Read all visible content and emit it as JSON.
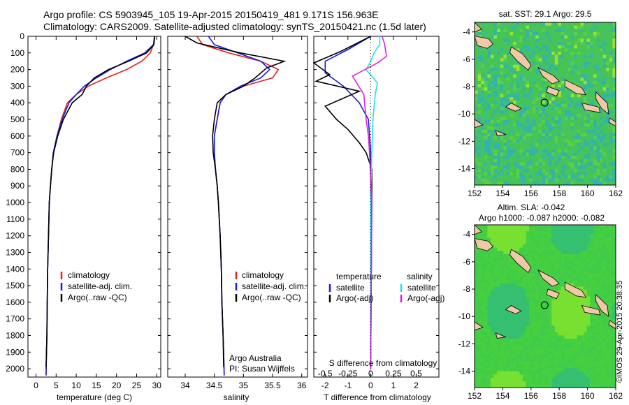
{
  "header": {
    "line1": "Argo profile: CS 5903945_105 19-Apr-2015 20150419_481 9.171S 156.963E",
    "line2": "Climatology: CARS2009. Satellite-adjusted climatology: synTS_20150421.nc (1.5d later)"
  },
  "colors": {
    "climatology": "#e0231c",
    "satellite": "#1a1ae0",
    "argo": "#000000",
    "sat_salinity": "#20e0e8",
    "argo_salinity": "#e020e0",
    "land": "#f0c8a8"
  },
  "chart_data": [
    {
      "type": "line",
      "name": "temperature",
      "xlabel": "temperature (deg C)",
      "ylabel": "",
      "xlim": [
        -2,
        31
      ],
      "ylim": [
        2050,
        0
      ],
      "xticks": [
        0,
        5,
        10,
        15,
        20,
        25,
        30
      ],
      "yticks": [
        0,
        100,
        200,
        300,
        400,
        500,
        600,
        700,
        800,
        900,
        1000,
        1100,
        1200,
        1300,
        1400,
        1500,
        1600,
        1700,
        1800,
        1900,
        2000
      ],
      "legend": [
        "climatology",
        "satellite-adj. clim.",
        "Argo(..raw -QC)"
      ],
      "series": [
        {
          "name": "climatology",
          "color_key": "climatology",
          "x": [
            29.4,
            29.2,
            28.4,
            26.3,
            22.5,
            17.5,
            13.0,
            10.0,
            7.8,
            6.3,
            5.2,
            4.3,
            3.9,
            3.6,
            3.3,
            3.1,
            2.9,
            2.8,
            2.7,
            2.6,
            2.5
          ],
          "y": [
            0,
            50,
            100,
            150,
            200,
            250,
            300,
            350,
            400,
            500,
            600,
            700,
            800,
            900,
            1000,
            1200,
            1400,
            1600,
            1800,
            1900,
            2040
          ]
        },
        {
          "name": "satellite-adj. clim.",
          "color_key": "satellite",
          "x": [
            29.5,
            29.2,
            27.0,
            22.5,
            18.5,
            15.0,
            12.0,
            10.0,
            8.2,
            6.5,
            5.2,
            4.3,
            3.9,
            3.6,
            3.3,
            3.1,
            2.9,
            2.8,
            2.7,
            2.6,
            2.5
          ],
          "y": [
            0,
            50,
            100,
            150,
            200,
            250,
            300,
            350,
            400,
            500,
            600,
            700,
            800,
            900,
            1000,
            1200,
            1400,
            1600,
            1800,
            1900,
            2040
          ]
        },
        {
          "name": "Argo(..raw -QC)",
          "color_key": "argo",
          "x": [
            29.5,
            29.3,
            27.5,
            23.0,
            18.0,
            14.5,
            12.5,
            11.5,
            9.0,
            6.8,
            5.4,
            4.4,
            3.9,
            3.6,
            3.3,
            3.1,
            2.9,
            2.8,
            2.7,
            2.6,
            2.5
          ],
          "y": [
            0,
            50,
            100,
            150,
            200,
            250,
            300,
            350,
            400,
            500,
            600,
            700,
            800,
            900,
            1000,
            1200,
            1400,
            1600,
            1800,
            1900,
            1990
          ]
        }
      ]
    },
    {
      "type": "line",
      "name": "salinity",
      "xlabel": "salinity",
      "ylabel": "",
      "xlim": [
        33.7,
        36.1
      ],
      "ylim": [
        2050,
        0
      ],
      "xticks": [
        34,
        34.5,
        35,
        35.5,
        36
      ],
      "legend": [
        "climatology",
        "satellite-adj. clim.",
        "Argo(..raw -QC)"
      ],
      "annotations": [
        "Argo Australia",
        "PI: Susan Wijffels"
      ],
      "series": [
        {
          "name": "climatology",
          "color_key": "climatology",
          "x": [
            34.2,
            34.3,
            34.75,
            35.3,
            35.6,
            35.5,
            35.0,
            34.7,
            34.6,
            34.55,
            34.5,
            34.5,
            34.52,
            34.55,
            34.57,
            34.6,
            34.62,
            34.63,
            34.65,
            34.66,
            34.67
          ],
          "y": [
            0,
            50,
            100,
            150,
            200,
            250,
            300,
            350,
            400,
            500,
            600,
            700,
            800,
            900,
            1000,
            1200,
            1400,
            1600,
            1800,
            1900,
            2040
          ]
        },
        {
          "name": "satellite-adj. clim.",
          "color_key": "satellite",
          "x": [
            34.4,
            34.5,
            34.9,
            35.3,
            35.45,
            35.3,
            34.95,
            34.7,
            34.6,
            34.55,
            34.5,
            34.5,
            34.52,
            34.55,
            34.57,
            34.6,
            34.62,
            34.63,
            34.65,
            34.66,
            34.67
          ],
          "y": [
            0,
            50,
            100,
            150,
            200,
            250,
            300,
            350,
            400,
            500,
            600,
            700,
            800,
            900,
            1000,
            1200,
            1400,
            1600,
            1800,
            1900,
            2040
          ]
        },
        {
          "name": "Argo(..raw -QC)",
          "color_key": "argo",
          "x": [
            34.0,
            34.2,
            34.95,
            35.7,
            35.4,
            35.2,
            35.0,
            34.7,
            34.55,
            34.5,
            34.47,
            34.48,
            34.52,
            34.55,
            34.57,
            34.6,
            34.62,
            34.63,
            34.65,
            34.66
          ],
          "y": [
            0,
            40,
            100,
            150,
            190,
            250,
            300,
            350,
            400,
            500,
            600,
            700,
            800,
            900,
            1000,
            1200,
            1400,
            1600,
            1800,
            1990
          ]
        }
      ]
    },
    {
      "type": "line",
      "name": "difference",
      "xlabel": "T difference from climatology",
      "xlabel_top": "S difference from climatology",
      "xlim": [
        -2.5,
        3
      ],
      "ylim": [
        2050,
        0
      ],
      "xticks": [
        -2,
        -1,
        0,
        1,
        2
      ],
      "s_ticks": [
        "-0.5",
        "-0.25",
        "0",
        "0.25",
        "0.5"
      ],
      "legend_titles": [
        "temperature",
        "salinity"
      ],
      "legend": [
        "satellite",
        "Argo(-adj)",
        "satellite",
        "Argo(-adj)"
      ],
      "series": [
        {
          "name": "T satellite",
          "color_key": "satellite",
          "x": [
            0,
            -1.0,
            -2.0,
            -2.0,
            -1.2,
            -0.5,
            -0.1,
            0,
            0,
            0
          ],
          "y": [
            0,
            80,
            150,
            220,
            300,
            400,
            500,
            700,
            1000,
            2000
          ]
        },
        {
          "name": "T Argo(-adj)",
          "color_key": "argo",
          "x": [
            0,
            -1.3,
            -2.5,
            -1.8,
            -2.4,
            -0.5,
            -2.0,
            -1.5,
            -1.0,
            -0.5,
            -0.2,
            0.05,
            0.05,
            0
          ],
          "y": [
            0,
            90,
            160,
            230,
            270,
            330,
            420,
            500,
            560,
            640,
            700,
            800,
            1000,
            2000
          ]
        },
        {
          "name": "S satellite",
          "color_key": "sat_salinity",
          "x": [
            0.4,
            0.4,
            0.15,
            0,
            -0.2,
            0.3,
            0.2,
            0.1,
            0.05,
            0,
            0
          ],
          "y": [
            0,
            50,
            100,
            150,
            200,
            280,
            350,
            500,
            700,
            1000,
            2000
          ]
        },
        {
          "name": "S Argo(-adj)",
          "color_key": "argo_salinity",
          "x": [
            0.5,
            0.6,
            0.7,
            0.3,
            -0.8,
            -0.3,
            -0.2,
            -0.1,
            -0.05,
            0.05,
            0
          ],
          "y": [
            0,
            40,
            120,
            160,
            240,
            350,
            500,
            600,
            700,
            1000,
            2000
          ]
        }
      ]
    },
    {
      "type": "heatmap",
      "name": "SST map",
      "title": "sat. SST: 29.1 Argo: 29.5",
      "xlim": [
        152,
        162
      ],
      "ylim": [
        -15.2,
        -3.3
      ],
      "xticks": [
        152,
        154,
        156,
        158,
        160,
        162
      ],
      "yticks": [
        -4,
        -6,
        -8,
        -10,
        -12,
        -14
      ],
      "marker": {
        "lon": 156.963,
        "lat": -9.171
      }
    },
    {
      "type": "heatmap",
      "name": "SLA map",
      "title": "Altim. SLA: -0.042",
      "subtitle": "Argo h1000: -0.087 h2000: -0.082",
      "xlim": [
        152,
        162
      ],
      "ylim": [
        -15.2,
        -3.3
      ],
      "xticks": [
        152,
        154,
        156,
        158,
        160,
        162
      ],
      "yticks": [
        -4,
        -6,
        -8,
        -10,
        -12,
        -14
      ],
      "marker": {
        "lon": 156.963,
        "lat": -9.171
      }
    }
  ],
  "stamp": "©IMOS 29-Apr-2015 20:38:35"
}
